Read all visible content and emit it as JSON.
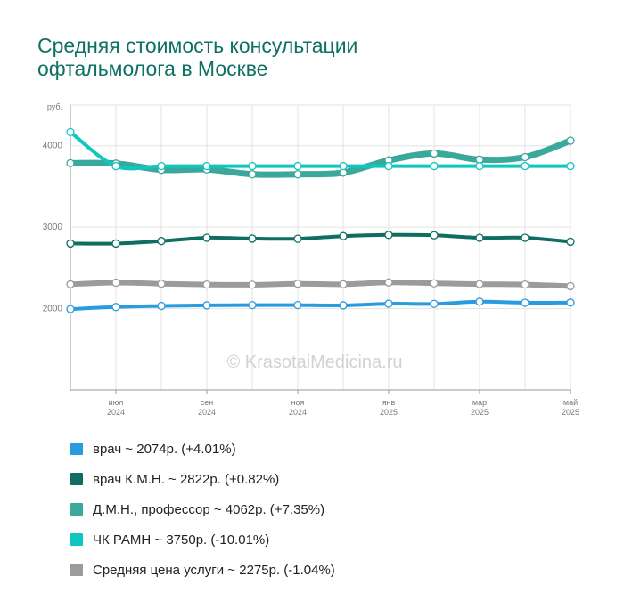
{
  "title_line1": "Средняя стоимость консультации",
  "title_line2": "офтальмолога в Москве",
  "watermark": "© KrasotaiMedicina.ru",
  "chart_data": {
    "type": "line",
    "ylabel": "руб.",
    "ylim": [
      1000,
      4500
    ],
    "yticks": [
      2000,
      3000,
      4000
    ],
    "x": [
      "2024-06",
      "2024-07",
      "2024-08",
      "2024-09",
      "2024-10",
      "2024-11",
      "2024-12",
      "2025-01",
      "2025-02",
      "2025-03",
      "2025-04",
      "2025-05"
    ],
    "xtick_labels": [
      {
        "index": 1,
        "month": "июл",
        "year": "2024"
      },
      {
        "index": 3,
        "month": "сен",
        "year": "2024"
      },
      {
        "index": 5,
        "month": "ноя",
        "year": "2024"
      },
      {
        "index": 7,
        "month": "янв",
        "year": "2025"
      },
      {
        "index": 9,
        "month": "мар",
        "year": "2025"
      },
      {
        "index": 11,
        "month": "май",
        "year": "2025"
      }
    ],
    "grid": true,
    "legend_position": "bottom",
    "series": [
      {
        "name": "врач",
        "color": "#2a9bdf",
        "width": 4,
        "values": [
          1994,
          2020,
          2033,
          2040,
          2043,
          2043,
          2040,
          2060,
          2058,
          2085,
          2072,
          2074
        ],
        "legend": "врач ~ 2074р. (+4.01%)"
      },
      {
        "name": "врач К.М.Н.",
        "color": "#0e6e62",
        "width": 4,
        "values": [
          2800,
          2800,
          2830,
          2870,
          2860,
          2858,
          2890,
          2905,
          2900,
          2870,
          2870,
          2822
        ],
        "legend": "врач К.М.Н. ~ 2822р. (+0.82%)"
      },
      {
        "name": "Д.М.Н., профессор",
        "color": "#3aa99c",
        "width": 7,
        "values": [
          3785,
          3780,
          3705,
          3710,
          3650,
          3650,
          3670,
          3820,
          3905,
          3830,
          3860,
          4062
        ],
        "legend": "Д.М.Н., профессор ~ 4062р. (+7.35%)"
      },
      {
        "name": "ЧК РАМН",
        "color": "#12c6c0",
        "width": 4,
        "values": [
          4168,
          3750,
          3750,
          3750,
          3750,
          3750,
          3750,
          3750,
          3750,
          3750,
          3750,
          3750
        ],
        "legend": "ЧК РАМН ~ 3750р. (-10.01%)"
      },
      {
        "name": "Средняя цена услуги",
        "color": "#9b9b9b",
        "width": 6,
        "values": [
          2298,
          2318,
          2305,
          2295,
          2292,
          2305,
          2298,
          2320,
          2310,
          2300,
          2295,
          2275
        ],
        "legend": "Средняя цена услуги ~ 2275р. (-1.04%)"
      }
    ]
  }
}
